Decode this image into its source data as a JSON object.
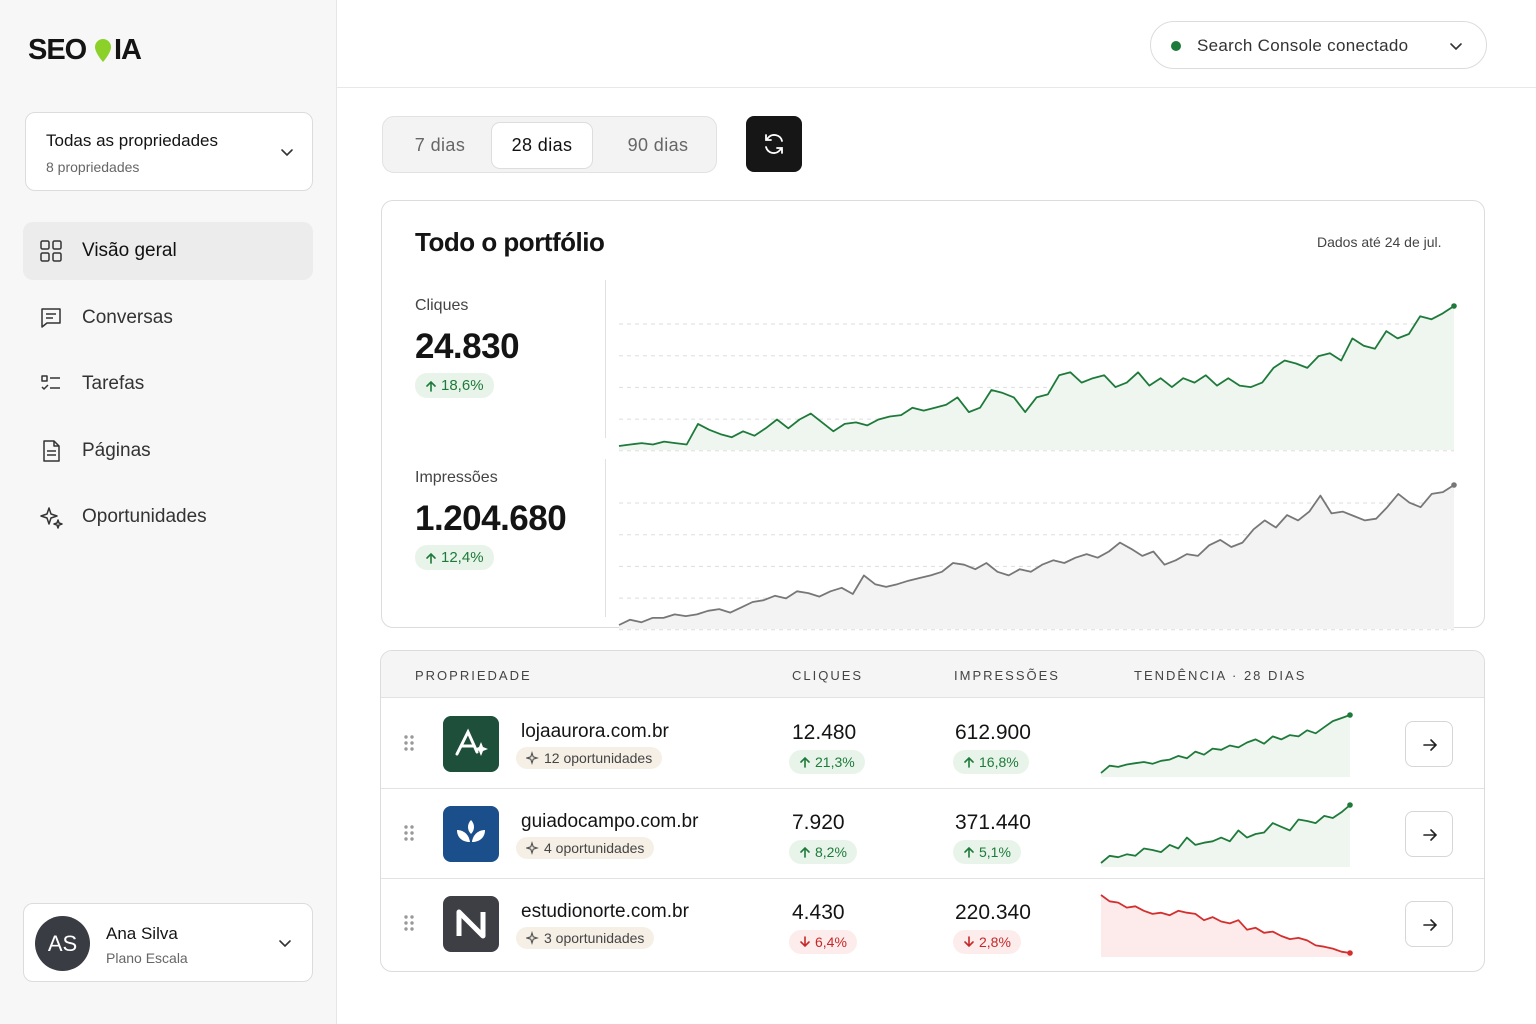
{
  "brand": {
    "left": "SEO",
    "right": "IA"
  },
  "property_selector": {
    "title": "Todas as propriedades",
    "subtitle": "8 propriedades"
  },
  "nav": [
    {
      "label": "Visão geral",
      "active": true
    },
    {
      "label": "Conversas",
      "active": false
    },
    {
      "label": "Tarefas",
      "active": false
    },
    {
      "label": "Páginas",
      "active": false
    },
    {
      "label": "Oportunidades",
      "active": false
    }
  ],
  "user": {
    "initials": "AS",
    "name": "Ana Silva",
    "plan": "Plano Escala"
  },
  "connection": {
    "label": "Search Console conectado"
  },
  "ranges": [
    {
      "label": "7 dias",
      "active": false
    },
    {
      "label": "28 dias",
      "active": true
    },
    {
      "label": "90 dias",
      "active": false
    }
  ],
  "portfolio": {
    "title": "Todo o portfólio",
    "updated": "Dados até 24 de jul.",
    "metrics": [
      {
        "label": "Cliques",
        "value": "24.830",
        "change": "18,6%",
        "direction": "up",
        "color": "#1e7a3a",
        "trend": [
          2,
          3,
          4,
          3,
          5,
          4,
          3,
          17,
          13,
          10,
          8,
          12,
          9,
          14,
          20,
          14,
          20,
          24,
          18,
          12,
          17,
          18,
          16,
          20,
          22,
          23,
          28,
          26,
          28,
          30,
          35,
          25,
          28,
          40,
          38,
          35,
          25,
          35,
          37,
          50,
          52,
          45,
          48,
          50,
          42,
          45,
          52,
          43,
          48,
          42,
          48,
          45,
          50,
          43,
          48,
          43,
          42,
          45,
          55,
          60,
          58,
          55,
          63,
          65,
          60,
          75,
          70,
          68,
          80,
          75,
          78,
          90,
          88,
          92,
          97
        ]
      },
      {
        "label": "Impressões",
        "value": "1.204.680",
        "change": "12,4%",
        "direction": "up",
        "color": "#777777",
        "trend": [
          2,
          8,
          5,
          10,
          10,
          14,
          12,
          14,
          18,
          20,
          16,
          22,
          28,
          30,
          35,
          32,
          40,
          38,
          34,
          40,
          44,
          37,
          58,
          48,
          45,
          48,
          52,
          55,
          58,
          62,
          72,
          70,
          65,
          72,
          62,
          58,
          65,
          62,
          70,
          75,
          72,
          78,
          82,
          78,
          85,
          95,
          88,
          80,
          85,
          70,
          75,
          82,
          80,
          92,
          98,
          90,
          95,
          110,
          120,
          112,
          126,
          120,
          130,
          148,
          128,
          130,
          125,
          120,
          122,
          135,
          150,
          140,
          135,
          150,
          152,
          160
        ]
      }
    ]
  },
  "table": {
    "headers": [
      "PROPRIEDADE",
      "CLIQUES",
      "IMPRESSÕES",
      "TENDÊNCIA · 28 DIAS"
    ],
    "rows": [
      {
        "domain": "lojaaurora.com.br",
        "opportunities": "12 oportunidades",
        "clicks": "12.480",
        "clicks_change": "21,3%",
        "impressions": "612.900",
        "impressions_change": "16,8%",
        "direction": "up",
        "logo_color": "#1d4f3a",
        "trend": [
          0,
          12,
          10,
          14,
          16,
          18,
          15,
          20,
          22,
          28,
          24,
          35,
          30,
          40,
          38,
          45,
          42,
          50,
          55,
          48,
          60,
          55,
          62,
          60,
          70,
          65,
          75,
          85,
          90,
          95
        ]
      },
      {
        "domain": "guiadocampo.com.br",
        "opportunities": "4 oportunidades",
        "clicks": "7.920",
        "clicks_change": "8,2%",
        "impressions": "371.440",
        "impressions_change": "5,1%",
        "direction": "up",
        "logo_color": "#1a4f8b",
        "trend": [
          0,
          10,
          8,
          12,
          10,
          20,
          18,
          15,
          25,
          20,
          35,
          25,
          28,
          30,
          35,
          30,
          45,
          35,
          40,
          42,
          55,
          50,
          45,
          60,
          58,
          55,
          65,
          62,
          70,
          80
        ]
      },
      {
        "domain": "estudionorte.com.br",
        "opportunities": "3 oportunidades",
        "clicks": "4.430",
        "clicks_change": "6,4%",
        "impressions": "220.340",
        "impressions_change": "2,8%",
        "direction": "down",
        "logo_color": "#3d3f45",
        "trend": [
          100,
          90,
          88,
          80,
          82,
          75,
          70,
          72,
          68,
          75,
          72,
          70,
          60,
          65,
          58,
          55,
          60,
          45,
          48,
          40,
          42,
          35,
          30,
          32,
          28,
          20,
          18,
          15,
          10,
          8
        ]
      }
    ]
  }
}
